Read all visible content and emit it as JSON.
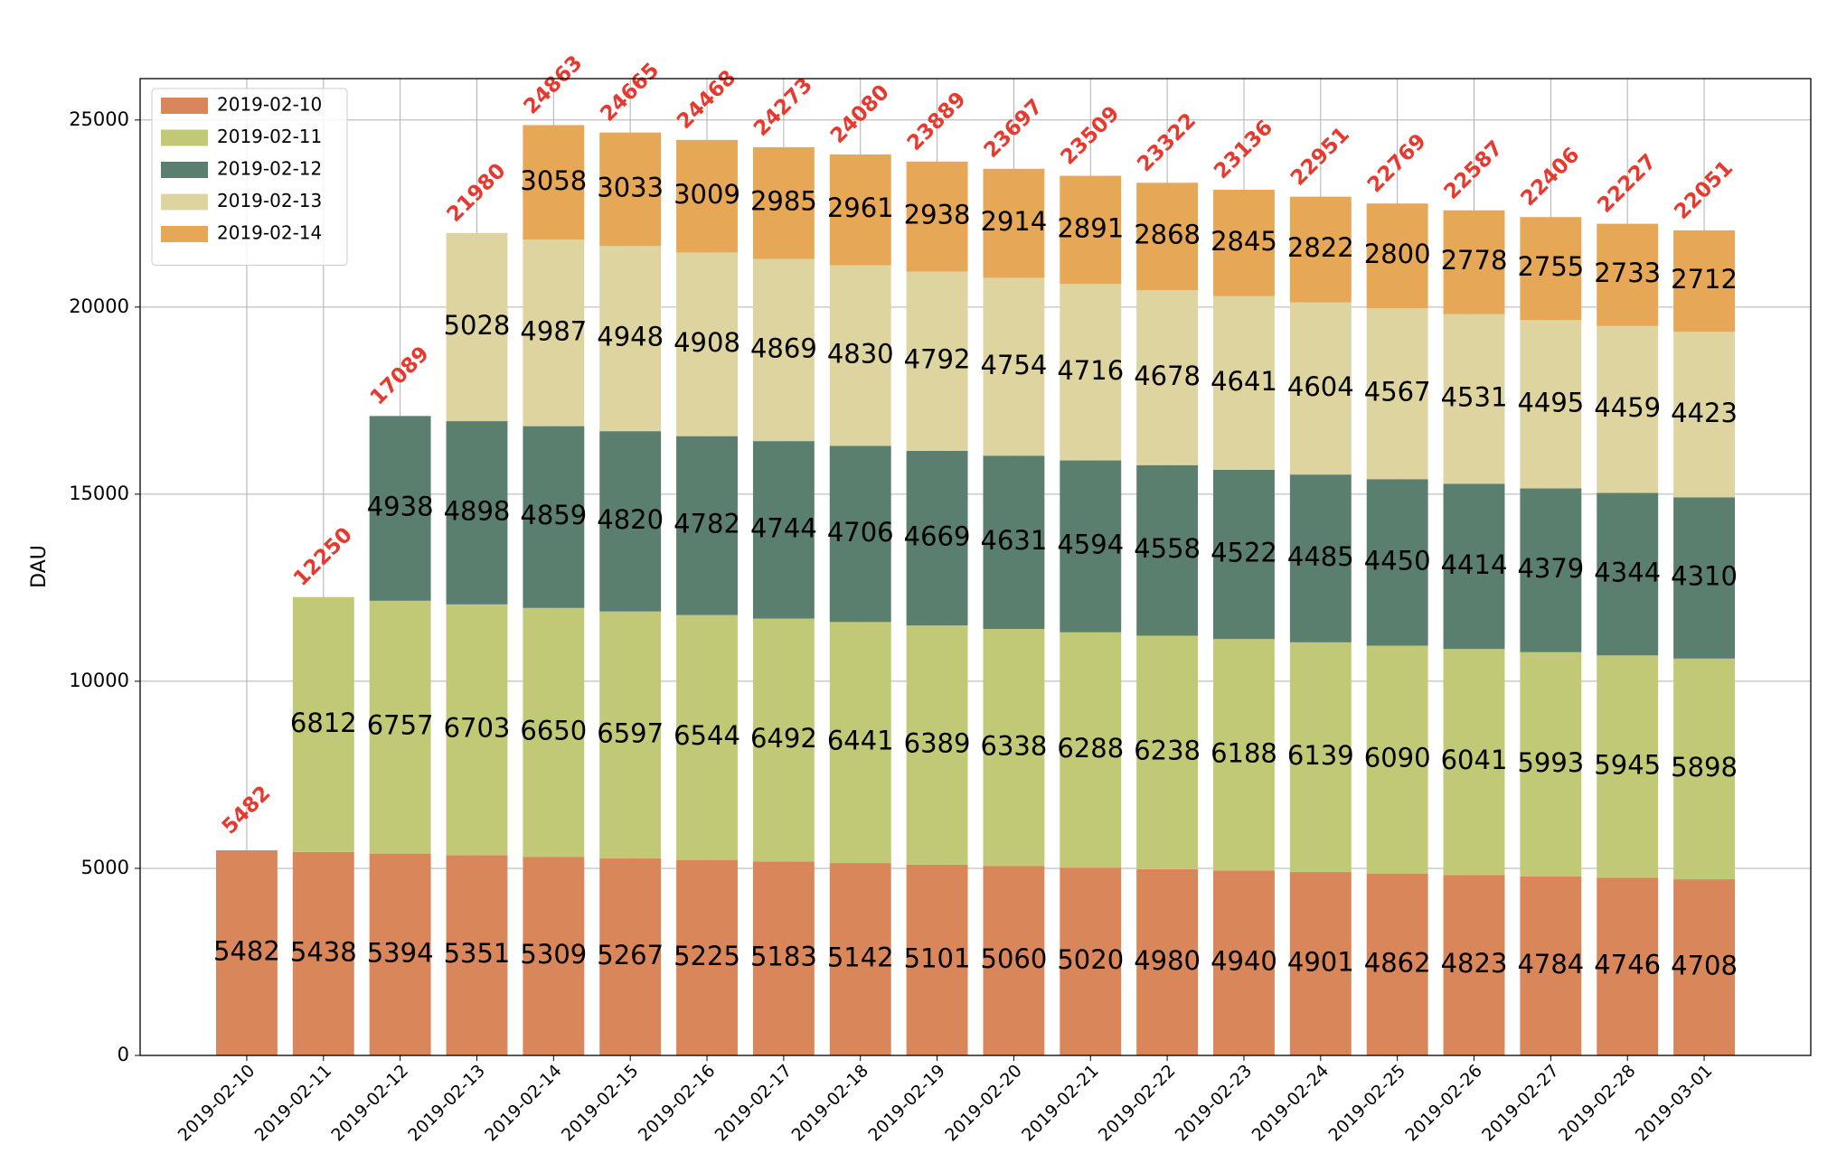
{
  "chart_data": {
    "type": "stacked_bar",
    "ylabel": "DAU",
    "categories": [
      "2019-02-10",
      "2019-02-11",
      "2019-02-12",
      "2019-02-13",
      "2019-02-14",
      "2019-02-15",
      "2019-02-16",
      "2019-02-17",
      "2019-02-18",
      "2019-02-19",
      "2019-02-20",
      "2019-02-21",
      "2019-02-22",
      "2019-02-23",
      "2019-02-24",
      "2019-02-25",
      "2019-02-26",
      "2019-02-27",
      "2019-02-28",
      "2019-03-01"
    ],
    "series": [
      {
        "name": "2019-02-10",
        "color": "#d8865a",
        "values": [
          5482,
          5438,
          5394,
          5351,
          5309,
          5267,
          5225,
          5183,
          5142,
          5101,
          5060,
          5020,
          4980,
          4940,
          4901,
          4862,
          4823,
          4784,
          4746,
          4708
        ]
      },
      {
        "name": "2019-02-11",
        "color": "#c2c976",
        "values": [
          null,
          6812,
          6757,
          6703,
          6650,
          6597,
          6544,
          6492,
          6441,
          6389,
          6338,
          6288,
          6238,
          6188,
          6139,
          6090,
          6041,
          5993,
          5945,
          5898
        ]
      },
      {
        "name": "2019-02-12",
        "color": "#5a7f6f",
        "values": [
          null,
          null,
          4938,
          4898,
          4859,
          4820,
          4782,
          4744,
          4706,
          4669,
          4631,
          4594,
          4558,
          4522,
          4485,
          4450,
          4414,
          4379,
          4344,
          4310
        ]
      },
      {
        "name": "2019-02-13",
        "color": "#ded4a0",
        "values": [
          null,
          null,
          null,
          5028,
          4987,
          4948,
          4908,
          4869,
          4830,
          4792,
          4754,
          4716,
          4678,
          4641,
          4604,
          4567,
          4531,
          4495,
          4459,
          4423
        ]
      },
      {
        "name": "2019-02-14",
        "color": "#e6a756",
        "values": [
          null,
          null,
          null,
          null,
          3058,
          3033,
          3009,
          2985,
          2961,
          2938,
          2914,
          2891,
          2868,
          2845,
          2822,
          2800,
          2778,
          2755,
          2733,
          2712
        ]
      }
    ],
    "totals": [
      5482,
      12250,
      17089,
      21980,
      24863,
      24665,
      24468,
      24273,
      24080,
      23889,
      23697,
      23509,
      23322,
      23136,
      22951,
      22769,
      22587,
      22406,
      22227,
      22051
    ],
    "totals_color": "#e8392f",
    "ylim": [
      0,
      26106
    ],
    "yticks": [
      0,
      5000,
      10000,
      15000,
      20000,
      25000
    ],
    "grid": true,
    "legend": "upper left"
  }
}
